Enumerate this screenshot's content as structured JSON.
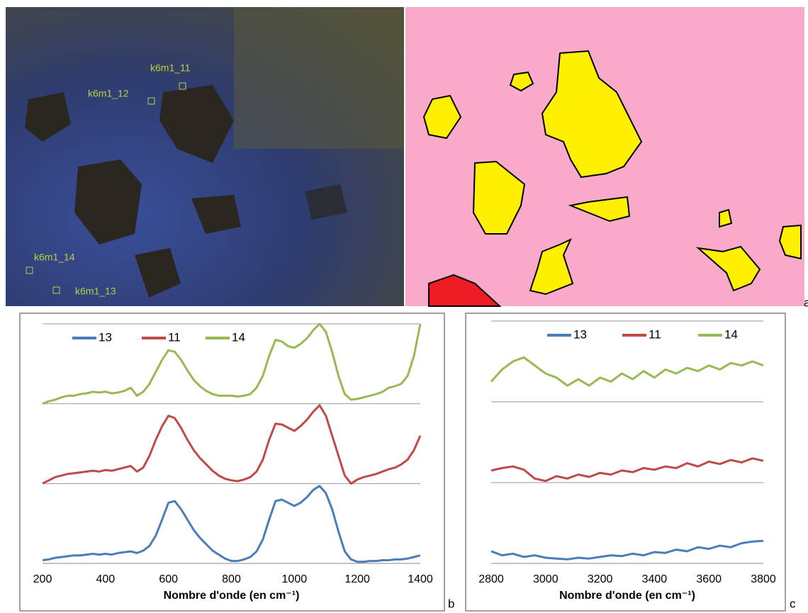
{
  "panel_labels": [
    "a",
    "b",
    "c"
  ],
  "image_labels": [
    "k6m1_11",
    "k6m1_12",
    "k6m1_14",
    "k6m1_13"
  ],
  "chart_data": [
    {
      "type": "line",
      "xlabel": "Nombre d'onde (en cm⁻¹)",
      "x": [
        200,
        220,
        240,
        260,
        280,
        300,
        320,
        340,
        360,
        380,
        400,
        420,
        440,
        460,
        480,
        500,
        520,
        540,
        560,
        580,
        600,
        620,
        640,
        660,
        680,
        700,
        720,
        740,
        760,
        780,
        800,
        820,
        840,
        860,
        880,
        900,
        920,
        940,
        960,
        980,
        1000,
        1020,
        1040,
        1060,
        1080,
        1100,
        1120,
        1140,
        1160,
        1180,
        1200,
        1220,
        1240,
        1260,
        1280,
        1300,
        1320,
        1340,
        1360,
        1380,
        1400
      ],
      "xlim": [
        200,
        1400
      ],
      "xticks": [
        200,
        400,
        600,
        800,
        1000,
        1200,
        1400
      ],
      "ylim": [
        0,
        3
      ],
      "yticks": [
        0,
        1,
        2,
        3
      ],
      "grid": true,
      "legend": "top",
      "series": [
        {
          "name": "13",
          "color": "#4a7ebb",
          "values": [
            0.04,
            0.05,
            0.07,
            0.08,
            0.09,
            0.1,
            0.1,
            0.11,
            0.12,
            0.11,
            0.12,
            0.11,
            0.13,
            0.14,
            0.15,
            0.13,
            0.16,
            0.22,
            0.35,
            0.55,
            0.76,
            0.78,
            0.68,
            0.55,
            0.42,
            0.32,
            0.24,
            0.16,
            0.11,
            0.06,
            0.03,
            0.03,
            0.05,
            0.08,
            0.15,
            0.3,
            0.55,
            0.78,
            0.8,
            0.76,
            0.72,
            0.76,
            0.83,
            0.92,
            0.97,
            0.88,
            0.68,
            0.4,
            0.15,
            0.05,
            0.02,
            0.02,
            0.03,
            0.03,
            0.04,
            0.04,
            0.05,
            0.05,
            0.06,
            0.08,
            0.1
          ]
        },
        {
          "name": "11",
          "color": "#be4b48",
          "values": [
            1.0,
            1.04,
            1.08,
            1.1,
            1.12,
            1.13,
            1.14,
            1.15,
            1.16,
            1.15,
            1.17,
            1.16,
            1.18,
            1.2,
            1.22,
            1.15,
            1.2,
            1.35,
            1.55,
            1.72,
            1.85,
            1.82,
            1.7,
            1.55,
            1.42,
            1.32,
            1.24,
            1.16,
            1.1,
            1.06,
            1.04,
            1.03,
            1.05,
            1.08,
            1.15,
            1.3,
            1.55,
            1.75,
            1.74,
            1.7,
            1.66,
            1.72,
            1.8,
            1.9,
            1.98,
            1.85,
            1.6,
            1.35,
            1.1,
            1.0,
            1.05,
            1.08,
            1.1,
            1.12,
            1.15,
            1.18,
            1.2,
            1.24,
            1.3,
            1.42,
            1.6
          ]
        },
        {
          "name": "14",
          "color": "#98b954",
          "values": [
            2.0,
            2.03,
            2.05,
            2.08,
            2.1,
            2.1,
            2.12,
            2.13,
            2.15,
            2.14,
            2.15,
            2.13,
            2.14,
            2.16,
            2.2,
            2.1,
            2.15,
            2.25,
            2.4,
            2.55,
            2.67,
            2.65,
            2.55,
            2.42,
            2.3,
            2.22,
            2.16,
            2.12,
            2.1,
            2.1,
            2.1,
            2.09,
            2.1,
            2.12,
            2.2,
            2.35,
            2.6,
            2.8,
            2.78,
            2.72,
            2.7,
            2.75,
            2.82,
            2.92,
            3.0,
            2.9,
            2.65,
            2.35,
            2.12,
            2.05,
            2.06,
            2.08,
            2.1,
            2.12,
            2.15,
            2.2,
            2.22,
            2.25,
            2.35,
            2.6,
            3.0
          ]
        }
      ]
    },
    {
      "type": "line",
      "xlabel": "Nombre d'onde (en cm⁻¹)",
      "x": [
        2800,
        2840,
        2880,
        2920,
        2960,
        3000,
        3040,
        3080,
        3120,
        3160,
        3200,
        3240,
        3280,
        3320,
        3360,
        3400,
        3440,
        3480,
        3520,
        3560,
        3600,
        3640,
        3680,
        3720,
        3760,
        3800
      ],
      "xlim": [
        2800,
        3800
      ],
      "xticks": [
        2800,
        3000,
        3200,
        3400,
        3600,
        3800
      ],
      "ylim": [
        0,
        3
      ],
      "yticks": [
        0,
        1,
        2,
        3
      ],
      "grid": true,
      "legend": "top",
      "series": [
        {
          "name": "13",
          "color": "#4a7ebb",
          "values": [
            0.15,
            0.1,
            0.12,
            0.08,
            0.1,
            0.07,
            0.06,
            0.05,
            0.07,
            0.06,
            0.08,
            0.1,
            0.09,
            0.12,
            0.1,
            0.14,
            0.13,
            0.17,
            0.15,
            0.2,
            0.18,
            0.22,
            0.2,
            0.25,
            0.27,
            0.28
          ]
        },
        {
          "name": "11",
          "color": "#be4b48",
          "values": [
            1.15,
            1.18,
            1.2,
            1.16,
            1.05,
            1.02,
            1.08,
            1.05,
            1.1,
            1.07,
            1.12,
            1.1,
            1.15,
            1.13,
            1.18,
            1.16,
            1.2,
            1.18,
            1.24,
            1.2,
            1.26,
            1.23,
            1.28,
            1.25,
            1.3,
            1.27
          ]
        },
        {
          "name": "14",
          "color": "#98b954",
          "values": [
            2.25,
            2.4,
            2.5,
            2.55,
            2.45,
            2.35,
            2.3,
            2.2,
            2.28,
            2.2,
            2.3,
            2.25,
            2.35,
            2.28,
            2.38,
            2.3,
            2.4,
            2.35,
            2.42,
            2.38,
            2.45,
            2.4,
            2.48,
            2.45,
            2.5,
            2.45
          ]
        }
      ]
    }
  ]
}
